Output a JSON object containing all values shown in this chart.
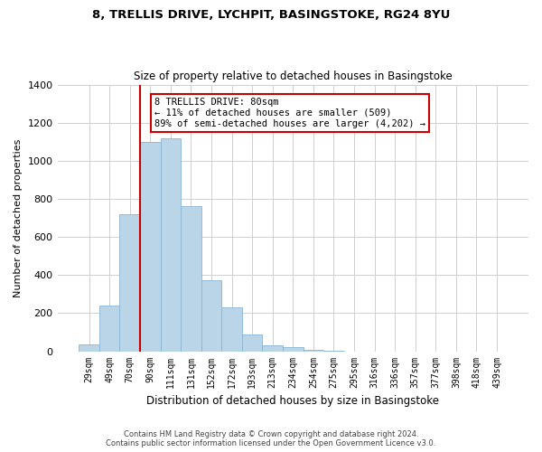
{
  "title1": "8, TRELLIS DRIVE, LYCHPIT, BASINGSTOKE, RG24 8YU",
  "title2": "Size of property relative to detached houses in Basingstoke",
  "xlabel": "Distribution of detached houses by size in Basingstoke",
  "ylabel": "Number of detached properties",
  "bar_labels": [
    "29sqm",
    "49sqm",
    "70sqm",
    "90sqm",
    "111sqm",
    "131sqm",
    "152sqm",
    "172sqm",
    "193sqm",
    "213sqm",
    "234sqm",
    "254sqm",
    "275sqm",
    "295sqm",
    "316sqm",
    "336sqm",
    "357sqm",
    "377sqm",
    "398sqm",
    "418sqm",
    "439sqm"
  ],
  "bar_values": [
    35,
    240,
    720,
    1100,
    1120,
    760,
    375,
    230,
    90,
    32,
    20,
    8,
    5,
    0,
    0,
    0,
    0,
    0,
    0,
    0,
    0
  ],
  "bar_color": "#bad4e8",
  "bar_edge_color": "#8ab4d4",
  "ylim": [
    0,
    1400
  ],
  "yticks": [
    0,
    200,
    400,
    600,
    800,
    1000,
    1200,
    1400
  ],
  "annotation_title": "8 TRELLIS DRIVE: 80sqm",
  "annotation_line1": "← 11% of detached houses are smaller (509)",
  "annotation_line2": "89% of semi-detached houses are larger (4,202) →",
  "annotation_box_color": "#ffffff",
  "annotation_box_edge": "#cc0000",
  "red_line_color": "#cc0000",
  "footer1": "Contains HM Land Registry data © Crown copyright and database right 2024.",
  "footer2": "Contains public sector information licensed under the Open Government Licence v3.0.",
  "background_color": "#ffffff",
  "grid_color": "#d0d0d0"
}
